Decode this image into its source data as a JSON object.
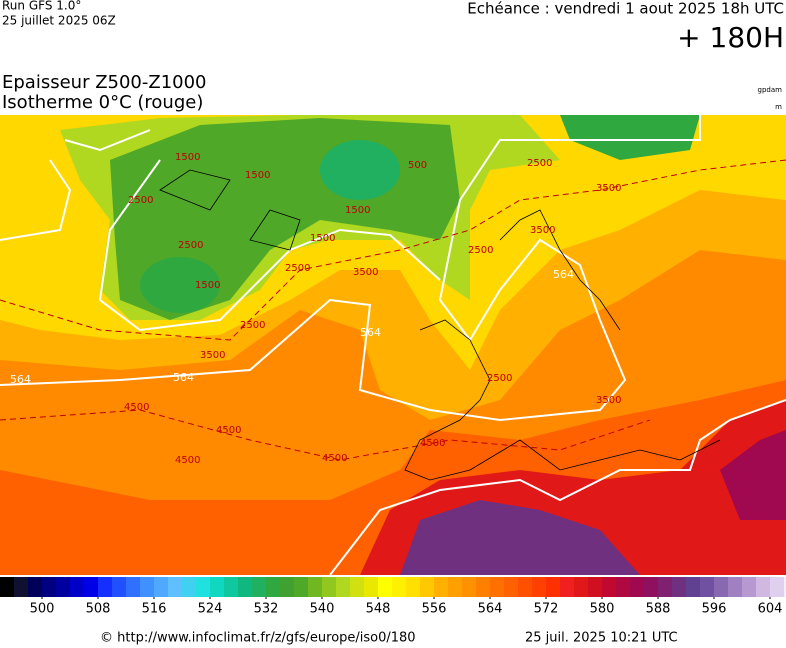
{
  "header": {
    "run": "Run GFS 1.0°",
    "run_date": "25 juillet 2025 06Z",
    "valid": "Echéance : vendredi 1 aout 2025 18h UTC",
    "lead": "+ 180H",
    "title_line1": "Epaisseur Z500-Z1000",
    "title_line2": "Isotherme 0°C (rouge)",
    "unit1": "gpdam",
    "unit2": "m"
  },
  "map": {
    "labels": [
      "1500",
      "2500",
      "1500",
      "2500",
      "1500",
      "1500",
      "1500",
      "500",
      "2500",
      "3500",
      "2500",
      "3500",
      "4500",
      "4500",
      "4500",
      "4500",
      "4500",
      "2500",
      "3500",
      "2500",
      "3500",
      "2500",
      "3500",
      "564",
      "564",
      "564",
      "564"
    ]
  },
  "colorbar": {
    "lim": [
      494,
      608
    ],
    "ticks": [
      500,
      508,
      516,
      524,
      532,
      540,
      548,
      556,
      564,
      572,
      580,
      588,
      596,
      604
    ],
    "colors": [
      "#000000",
      "#101030",
      "#00005a",
      "#000080",
      "#0000a0",
      "#0000c8",
      "#0000e6",
      "#1430ff",
      "#2050ff",
      "#3070ff",
      "#4090ff",
      "#50a8ff",
      "#60c0ff",
      "#40d0f0",
      "#20e0e0",
      "#10d8c0",
      "#10c8a0",
      "#10b880",
      "#20b060",
      "#30a840",
      "#40a030",
      "#50a828",
      "#70b820",
      "#90c820",
      "#b0d820",
      "#d0e010",
      "#e8e800",
      "#ffff00",
      "#fff000",
      "#ffe000",
      "#ffc800",
      "#ffb000",
      "#ffa000",
      "#ff9000",
      "#ff8000",
      "#ff7000",
      "#ff6000",
      "#ff5000",
      "#ff4000",
      "#ff3000",
      "#f02020",
      "#e01818",
      "#d01020",
      "#c00830",
      "#b00840",
      "#a00850",
      "#901060",
      "#802070",
      "#703080",
      "#604090",
      "#7050a0",
      "#8868b0",
      "#a080c0",
      "#b898d0",
      "#d0b8e0",
      "#e0d0f0",
      "#f0f0ff"
    ]
  },
  "footer": {
    "url": "© http://www.infoclimat.fr/z/gfs/europe/iso0/180",
    "generated": "25 juil. 2025 10:21 UTC"
  }
}
